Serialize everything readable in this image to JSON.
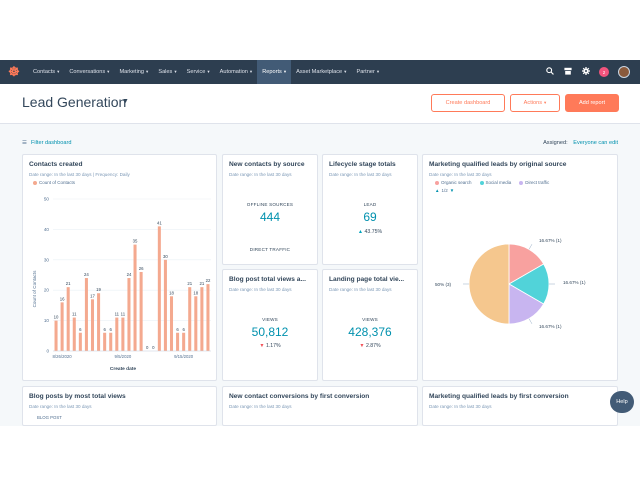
{
  "nav": {
    "logo": "☸",
    "items": [
      {
        "label": "Contacts",
        "active": false
      },
      {
        "label": "Conversations",
        "active": false
      },
      {
        "label": "Marketing",
        "active": false
      },
      {
        "label": "Sales",
        "active": false
      },
      {
        "label": "Service",
        "active": false
      },
      {
        "label": "Automation",
        "active": false
      },
      {
        "label": "Reports",
        "active": true
      },
      {
        "label": "Asset Marketplace",
        "active": false
      },
      {
        "label": "Partner",
        "active": false
      }
    ],
    "icons": [
      "search-icon",
      "marketplace-icon",
      "settings-icon",
      "notifications-icon"
    ],
    "notif_count": "2"
  },
  "header": {
    "title": "Lead Generation",
    "create_dashboard": "Create dashboard",
    "actions": "Actions",
    "add_report": "Add report"
  },
  "subbar": {
    "filter": "Filter dashboard",
    "assigned_label": "Assigned:",
    "assigned_value": "Everyone can edit"
  },
  "cards": {
    "contacts_created": {
      "title": "Contacts created",
      "subtitle": "Date range: In the last 30 days",
      "frequency": "Frequency: Daily",
      "legend": "Count of Contacts",
      "ylabel": "Count of Contacts",
      "xlabel": "Create date"
    },
    "new_contacts_source": {
      "title": "New contacts by source",
      "subtitle": "Date range: In the last 30 days",
      "label": "OFFLINE SOURCES",
      "value": "444",
      "label2": "DIRECT TRAFFIC"
    },
    "lifecycle": {
      "title": "Lifecycle stage totals",
      "subtitle": "Date range: In the last 30 days",
      "label": "LEAD",
      "value": "69",
      "change": "43.75%"
    },
    "mql_source": {
      "title": "Marketing qualified leads by original source",
      "subtitle": "Date range: In the last 30 days",
      "legend": [
        "Organic search",
        "Social media",
        "Direct traffic"
      ],
      "pager": "1/2"
    },
    "blog_views": {
      "title": "Blog post total views a...",
      "subtitle": "Date range: In the last 30 days",
      "label": "VIEWS",
      "value": "50,812",
      "change": "1.17%"
    },
    "landing_views": {
      "title": "Landing page total vie...",
      "subtitle": "Date range: In the last 30 days",
      "label": "VIEWS",
      "value": "428,376",
      "change": "2.87%"
    },
    "blog_most": {
      "title": "Blog posts by most total views",
      "subtitle": "Date range: In the last 30 days",
      "column": "BLOG POST"
    },
    "contact_conv": {
      "title": "New contact conversions by first conversion",
      "subtitle": "Date range: In the last 30 days"
    },
    "mql_conv": {
      "title": "Marketing qualified leads by first conversion",
      "subtitle": "Date range: In the last 30 days"
    }
  },
  "help": "Help",
  "chart_data": [
    {
      "type": "bar",
      "title": "Contacts created",
      "xlabel": "Create date",
      "ylabel": "Count of Contacts",
      "ylim": [
        0,
        50
      ],
      "yticks": [
        0,
        10,
        20,
        30,
        40,
        50
      ],
      "xticks": [
        "8/26/2020",
        "9/5/2020",
        "9/15/2020"
      ],
      "series": [
        {
          "name": "Count of Contacts",
          "values": [
            10,
            16,
            21,
            11,
            6,
            24,
            17,
            19,
            6,
            6,
            11,
            11,
            24,
            35,
            26,
            0,
            0,
            41,
            30,
            18,
            6,
            6,
            21,
            18,
            21,
            22
          ]
        }
      ],
      "grid": true
    },
    {
      "type": "pie",
      "title": "Marketing qualified leads by original source",
      "slices": [
        {
          "label": "16.67% (1)",
          "value": 16.67,
          "color": "#f8a19f"
        },
        {
          "label": "16.67% (1)",
          "value": 16.67,
          "color": "#51d3d9"
        },
        {
          "label": "16.67% (1)",
          "value": 16.67,
          "color": "#c8b5f0"
        },
        {
          "label": "50% (3)",
          "value": 50,
          "color": "#f5c78e"
        }
      ]
    }
  ],
  "colors": {
    "accent": "#ff7a59",
    "link": "#0091ae",
    "nav": "#2d3e50",
    "bar": "#f4a98f"
  }
}
